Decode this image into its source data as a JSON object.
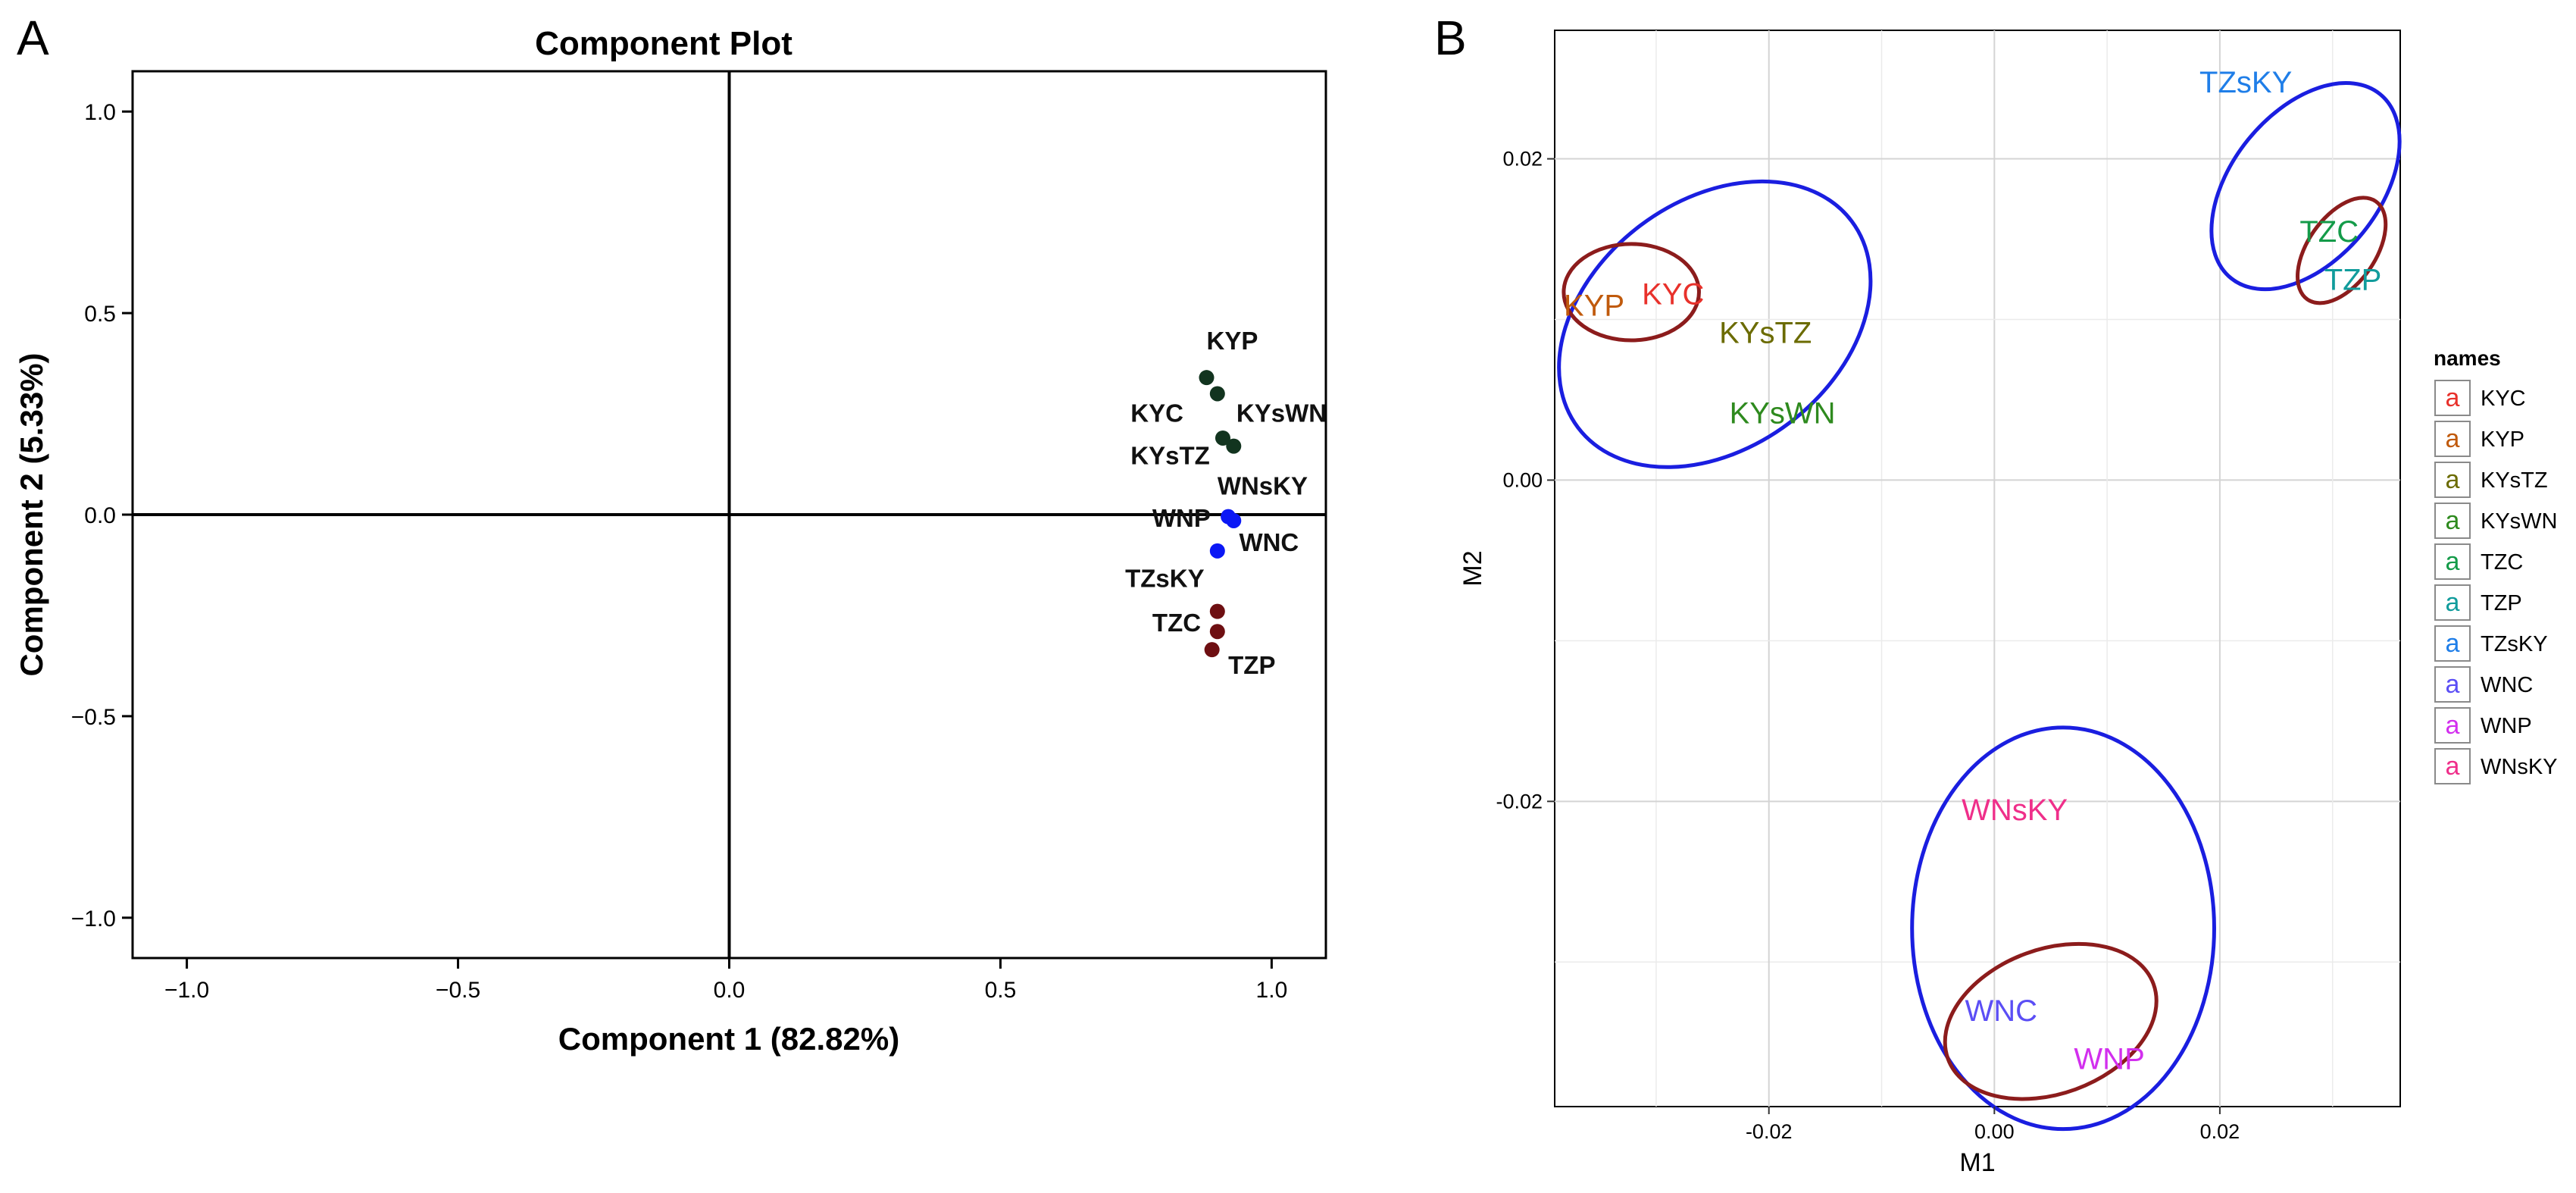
{
  "chart_data": [
    {
      "panel_label": "A",
      "type": "scatter",
      "title": "Component Plot",
      "xlabel": "Component 1 (82.82%)",
      "ylabel": "Component 2 (5.33%)",
      "xlim": [
        -1.1,
        1.1
      ],
      "ylim": [
        -1.1,
        1.1
      ],
      "xticks": [
        -1.0,
        -0.5,
        0.0,
        0.5,
        1.0
      ],
      "xtick_labels": [
        "−1.0",
        "−0.5",
        "0.0",
        "0.5",
        "1.0"
      ],
      "yticks": [
        1.0,
        0.5,
        0.0,
        -0.5,
        -1.0
      ],
      "ytick_labels": [
        "1.0",
        "0.5",
        "0.0",
        "−0.5",
        "−1.0"
      ],
      "grid": false,
      "points": [
        {
          "label": "KYP",
          "x": 0.88,
          "y": 0.34,
          "color": "#12341f"
        },
        {
          "label": "KYC",
          "x": 0.9,
          "y": 0.3,
          "color": "#12341f"
        },
        {
          "label": "KYsWN",
          "x": 0.91,
          "y": 0.19,
          "color": "#12341f"
        },
        {
          "label": "KYsTZ",
          "x": 0.93,
          "y": 0.17,
          "color": "#12341f"
        },
        {
          "label": "WNsKY",
          "x": 0.92,
          "y": -0.005,
          "color": "#0b18f5"
        },
        {
          "label": "WNP",
          "x": 0.93,
          "y": -0.015,
          "color": "#0b18f5"
        },
        {
          "label": "WNC",
          "x": 0.9,
          "y": -0.09,
          "color": "#0b18f5"
        },
        {
          "label": "TZsKY",
          "x": 0.9,
          "y": -0.24,
          "color": "#6e0f12"
        },
        {
          "label": "TZC",
          "x": 0.9,
          "y": -0.29,
          "color": "#6e0f12"
        },
        {
          "label": "TZP",
          "x": 0.89,
          "y": -0.335,
          "color": "#6e0f12"
        }
      ],
      "text_labels": [
        {
          "text": "KYP",
          "x": 0.88,
          "y": 0.41
        },
        {
          "text": "KYC",
          "x": 0.74,
          "y": 0.23
        },
        {
          "text": "KYsWN",
          "x": 0.935,
          "y": 0.23
        },
        {
          "text": "KYsTZ",
          "x": 0.74,
          "y": 0.125
        },
        {
          "text": "WNsKY",
          "x": 0.9,
          "y": 0.05
        },
        {
          "text": "WNP",
          "x": 0.78,
          "y": -0.03
        },
        {
          "text": "WNC",
          "x": 0.94,
          "y": -0.09
        },
        {
          "text": "TZsKY",
          "x": 0.73,
          "y": -0.18
        },
        {
          "text": "TZC",
          "x": 0.78,
          "y": -0.29
        },
        {
          "text": "TZP",
          "x": 0.92,
          "y": -0.395
        }
      ]
    },
    {
      "panel_label": "B",
      "type": "scatter",
      "xlabel": "M1",
      "ylabel": "M2",
      "xlim": [
        -0.039,
        0.036
      ],
      "ylim": [
        -0.039,
        0.028
      ],
      "xticks": [
        -0.02,
        0.0,
        0.02
      ],
      "xtick_labels": [
        "-0.02",
        "0.00",
        "0.02"
      ],
      "yticks": [
        0.02,
        0.0,
        -0.02
      ],
      "ytick_labels": [
        "0.02",
        "0.00",
        "-0.02"
      ],
      "grid": true,
      "legend": {
        "title": "names",
        "glyph": "a",
        "position": "right",
        "entries": [
          {
            "label": "KYC",
            "color": "#e8312b"
          },
          {
            "label": "KYP",
            "color": "#c05a0c"
          },
          {
            "label": "KYsTZ",
            "color": "#6b6b00"
          },
          {
            "label": "KYsWN",
            "color": "#2e8a1e"
          },
          {
            "label": "TZC",
            "color": "#149b49"
          },
          {
            "label": "TZP",
            "color": "#119c9c"
          },
          {
            "label": "TZsKY",
            "color": "#1f7ee8"
          },
          {
            "label": "WNC",
            "color": "#5b4ef5"
          },
          {
            "label": "WNP",
            "color": "#d22fee"
          },
          {
            "label": "WNsKY",
            "color": "#ef2f8a"
          }
        ]
      },
      "points": [
        {
          "label": "KYC",
          "x": -0.0285,
          "y": 0.0116,
          "color": "#e8312b"
        },
        {
          "label": "KYP",
          "x": -0.0355,
          "y": 0.0109,
          "color": "#c05a0c"
        },
        {
          "label": "KYsTZ",
          "x": -0.0203,
          "y": 0.0092,
          "color": "#6b6b00"
        },
        {
          "label": "KYsWN",
          "x": -0.0188,
          "y": 0.0042,
          "color": "#2e8a1e"
        },
        {
          "label": "TZC",
          "x": 0.0297,
          "y": 0.0155,
          "color": "#149b49"
        },
        {
          "label": "TZP",
          "x": 0.0318,
          "y": 0.0125,
          "color": "#119c9c"
        },
        {
          "label": "TZsKY",
          "x": 0.0223,
          "y": 0.0248,
          "color": "#1f7ee8"
        },
        {
          "label": "WNC",
          "x": 0.0006,
          "y": -0.033,
          "color": "#5b4ef5"
        },
        {
          "label": "WNP",
          "x": 0.0102,
          "y": -0.036,
          "color": "#d22fee"
        },
        {
          "label": "WNsKY",
          "x": 0.0018,
          "y": -0.0205,
          "color": "#ef2f8a"
        }
      ],
      "group_ellipses": [
        {
          "group": "KY",
          "color": "#1a1ee0",
          "cx": -0.0248,
          "cy": 0.0097,
          "rx": 0.0152,
          "ry": 0.0077,
          "angle": 37
        },
        {
          "group": "KY",
          "color": "#8c1c1c",
          "cx": -0.0322,
          "cy": 0.0117,
          "rx": 0.006,
          "ry": 0.003,
          "angle": 0
        },
        {
          "group": "TZ",
          "color": "#1a1ee0",
          "cx": 0.0276,
          "cy": 0.0183,
          "rx": 0.0105,
          "ry": 0.0046,
          "angle": 51
        },
        {
          "group": "TZ",
          "color": "#8c1c1c",
          "cx": 0.0308,
          "cy": 0.0143,
          "rx": 0.0053,
          "ry": 0.0021,
          "angle": 55
        },
        {
          "group": "WN",
          "color": "#1a1ee0",
          "cx": 0.0061,
          "cy": -0.0279,
          "rx": 0.0134,
          "ry": 0.0125,
          "angle": 0
        },
        {
          "group": "WN",
          "color": "#8c1c1c",
          "cx": 0.005,
          "cy": -0.0337,
          "rx": 0.0097,
          "ry": 0.0045,
          "angle": 20
        }
      ]
    }
  ]
}
